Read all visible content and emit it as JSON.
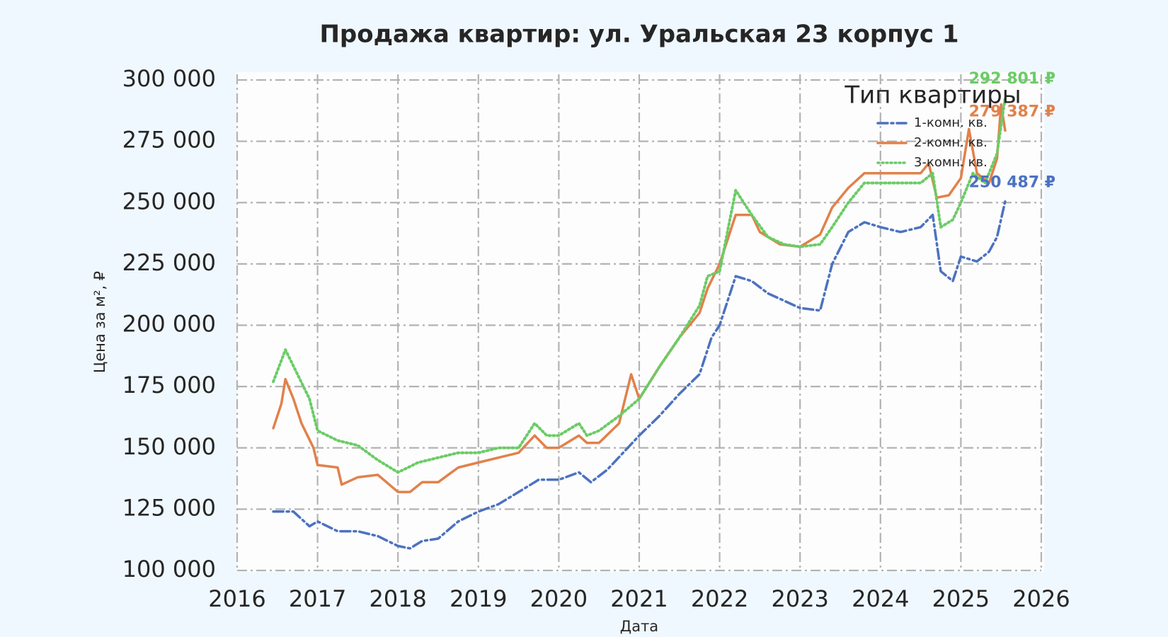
{
  "chart_data": {
    "type": "line",
    "title": "Продажа квартир: ул. Уральская 23 корпус 1",
    "x_label": "Дата",
    "y_label": "Цена за м², ₽",
    "legend_title": "Тип квартиры",
    "legend_position": "upper right",
    "grid": true,
    "xlim": [
      2016,
      2026
    ],
    "xticks": [
      2016,
      2017,
      2018,
      2019,
      2020,
      2021,
      2022,
      2023,
      2024,
      2025,
      2026
    ],
    "ylim": [
      100000,
      300000
    ],
    "yticks": [
      {
        "value": 100000,
        "label": "100 000"
      },
      {
        "value": 125000,
        "label": "125 000"
      },
      {
        "value": 150000,
        "label": "150 000"
      },
      {
        "value": 175000,
        "label": "175 000"
      },
      {
        "value": 200000,
        "label": "200 000"
      },
      {
        "value": 225000,
        "label": "225 000"
      },
      {
        "value": 250000,
        "label": "250 000"
      },
      {
        "value": 275000,
        "label": "275 000"
      },
      {
        "value": 300000,
        "label": "300 000"
      }
    ],
    "series": [
      {
        "name": "1-комн. кв.",
        "color": "#4c72c0",
        "linestyle": "dashdot",
        "x": [
          2016.45,
          2016.7,
          2016.9,
          2017.0,
          2017.25,
          2017.5,
          2017.75,
          2018.0,
          2018.15,
          2018.3,
          2018.5,
          2018.75,
          2019.0,
          2019.25,
          2019.5,
          2019.75,
          2020.0,
          2020.25,
          2020.4,
          2020.6,
          2020.8,
          2021.0,
          2021.25,
          2021.5,
          2021.75,
          2021.9,
          2022.0,
          2022.2,
          2022.4,
          2022.6,
          2022.8,
          2023.0,
          2023.25,
          2023.4,
          2023.6,
          2023.8,
          2024.0,
          2024.25,
          2024.5,
          2024.65,
          2024.75,
          2024.9,
          2025.0,
          2025.2,
          2025.35,
          2025.45,
          2025.55
        ],
        "values": [
          124000,
          124000,
          118000,
          120000,
          116000,
          116000,
          114000,
          110000,
          109000,
          112000,
          113000,
          120000,
          124000,
          127000,
          132000,
          137000,
          137000,
          140000,
          136000,
          141000,
          148000,
          155000,
          163000,
          172000,
          180000,
          195000,
          200000,
          220000,
          218000,
          213000,
          210000,
          207000,
          206000,
          225000,
          238000,
          242000,
          240000,
          238000,
          240000,
          245000,
          222000,
          218000,
          228000,
          226000,
          230000,
          236000,
          250487
        ]
      },
      {
        "name": "2-комн. кв.",
        "color": "#e1814b",
        "linestyle": "solid",
        "x": [
          2016.45,
          2016.55,
          2016.6,
          2016.7,
          2016.8,
          2016.95,
          2017.0,
          2017.25,
          2017.3,
          2017.5,
          2017.75,
          2018.0,
          2018.15,
          2018.3,
          2018.5,
          2018.75,
          2019.0,
          2019.25,
          2019.5,
          2019.7,
          2019.85,
          2020.0,
          2020.25,
          2020.35,
          2020.5,
          2020.75,
          2020.9,
          2021.0,
          2021.25,
          2021.5,
          2021.75,
          2021.85,
          2022.0,
          2022.2,
          2022.4,
          2022.5,
          2022.75,
          2023.0,
          2023.25,
          2023.4,
          2023.6,
          2023.8,
          2024.0,
          2024.25,
          2024.5,
          2024.6,
          2024.7,
          2024.85,
          2025.0,
          2025.1,
          2025.2,
          2025.35,
          2025.45,
          2025.5,
          2025.55
        ],
        "values": [
          158000,
          168000,
          178000,
          170000,
          160000,
          150000,
          143000,
          142000,
          135000,
          138000,
          139000,
          132000,
          132000,
          136000,
          136000,
          142000,
          144000,
          146000,
          148000,
          155000,
          150000,
          150000,
          155000,
          152000,
          152000,
          160000,
          180000,
          170000,
          183000,
          195000,
          205000,
          215000,
          225000,
          245000,
          245000,
          238000,
          233000,
          232000,
          237000,
          248000,
          256000,
          262000,
          262000,
          262000,
          262000,
          266000,
          252000,
          253000,
          260000,
          280000,
          262000,
          258000,
          268000,
          290000,
          279387
        ]
      },
      {
        "name": "3-комн. кв.",
        "color": "#6acc65",
        "linestyle": "dotted",
        "x": [
          2016.45,
          2016.6,
          2016.75,
          2016.9,
          2017.0,
          2017.25,
          2017.5,
          2017.75,
          2018.0,
          2018.25,
          2018.5,
          2018.75,
          2019.0,
          2019.25,
          2019.5,
          2019.7,
          2019.85,
          2020.0,
          2020.25,
          2020.35,
          2020.5,
          2020.75,
          2021.0,
          2021.25,
          2021.5,
          2021.75,
          2021.85,
          2022.0,
          2022.2,
          2022.4,
          2022.6,
          2022.8,
          2023.0,
          2023.25,
          2023.4,
          2023.6,
          2023.8,
          2024.0,
          2024.25,
          2024.5,
          2024.65,
          2024.75,
          2024.9,
          2025.0,
          2025.15,
          2025.3,
          2025.45,
          2025.55
        ],
        "values": [
          177000,
          190000,
          180000,
          170000,
          157000,
          153000,
          151000,
          145000,
          140000,
          144000,
          146000,
          148000,
          148000,
          150000,
          150000,
          160000,
          155000,
          155000,
          160000,
          155000,
          157000,
          163000,
          170000,
          183000,
          195000,
          208000,
          220000,
          222000,
          255000,
          245000,
          236000,
          233000,
          232000,
          233000,
          240000,
          250000,
          258000,
          258000,
          258000,
          258000,
          262000,
          240000,
          243000,
          250000,
          262000,
          258000,
          270000,
          292801
        ]
      }
    ],
    "annotations": [
      {
        "text": "292 801 ₽",
        "x": 2025.55,
        "y": 292801,
        "color": "#6acc65"
      },
      {
        "text": "279 387 ₽",
        "x": 2025.55,
        "y": 279387,
        "color": "#e1814b"
      },
      {
        "text": "250 487 ₽",
        "x": 2025.55,
        "y": 250487,
        "color": "#4c72c0"
      }
    ]
  }
}
